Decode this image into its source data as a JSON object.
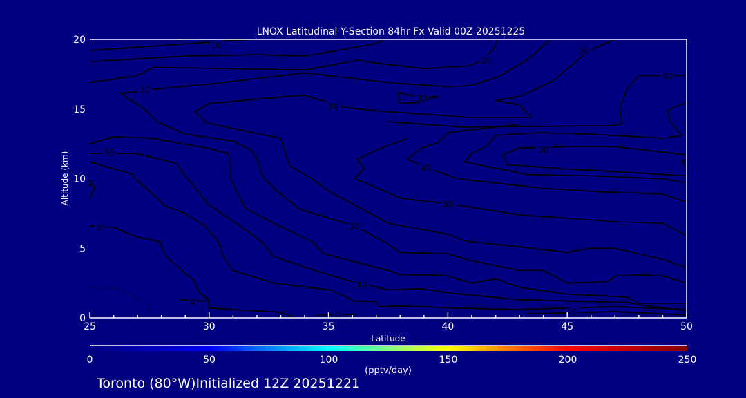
{
  "chart_data": {
    "type": "contour",
    "title": "LNOX Latitudinal Y-Section 84hr  Fx Valid 00Z 20251225",
    "xlabel": "Latitude",
    "ylabel": "Altitude (km)",
    "xlim": [
      25,
      50
    ],
    "ylim": [
      0,
      20
    ],
    "xticks": [
      "25",
      "30",
      "35",
      "40",
      "45",
      "50"
    ],
    "yticks": [
      "0",
      "5",
      "10",
      "15",
      "20"
    ],
    "xtick_values": [
      25,
      30,
      35,
      40,
      45,
      50
    ],
    "ytick_values": [
      0,
      5,
      10,
      15,
      20
    ],
    "grid": false,
    "colorbar": {
      "label": "(pptv/day)",
      "range": [
        0,
        250
      ],
      "ticks": [
        "0",
        "50",
        "100",
        "150",
        "200",
        "250"
      ],
      "tick_values": [
        0,
        50,
        100,
        150,
        200,
        250
      ],
      "colors": [
        "#000080",
        "#0000ff",
        "#00ffff",
        "#ffff00",
        "#ff0000",
        "#800000"
      ]
    },
    "fill_color": "#000080",
    "contours": [
      {
        "level": 10,
        "points": [
          [
            25,
            19.2
          ],
          [
            26.7,
            19.4
          ],
          [
            30.8,
            19.9
          ],
          [
            32,
            20
          ]
        ]
      },
      {
        "level": 20,
        "points": [
          [
            25,
            18.4
          ],
          [
            29,
            18.8
          ],
          [
            32,
            18.9
          ],
          [
            34,
            18.8
          ],
          [
            37,
            19.7
          ],
          [
            37.3,
            20
          ]
        ]
      },
      {
        "level": 20,
        "points": [
          [
            25,
            16.9
          ],
          [
            27,
            17.4
          ],
          [
            27.7,
            18
          ],
          [
            34,
            17.8
          ],
          [
            36.2,
            18.5
          ],
          [
            37.5,
            18.2
          ],
          [
            39,
            17.9
          ],
          [
            40.9,
            18.1
          ],
          [
            41.5,
            18.6
          ],
          [
            41.9,
            19.3
          ],
          [
            42.1,
            20
          ]
        ]
      },
      {
        "level": 20,
        "points": [
          [
            44.3,
            20
          ],
          [
            43.3,
            18.5
          ],
          [
            42.1,
            17.3
          ],
          [
            41,
            16.7
          ],
          [
            40,
            16.6
          ],
          [
            37.5,
            16.9
          ],
          [
            34,
            17.6
          ],
          [
            30.6,
            16.9
          ],
          [
            27.6,
            16.4
          ],
          [
            26.3,
            16.1
          ],
          [
            27.3,
            15
          ],
          [
            27.8,
            14.1
          ],
          [
            29,
            13.2
          ],
          [
            31,
            12.7
          ],
          [
            31.7,
            12.1
          ],
          [
            32,
            11.5
          ],
          [
            32.3,
            10
          ],
          [
            32.9,
            9
          ],
          [
            33.8,
            7.8
          ],
          [
            36.1,
            6.6
          ],
          [
            37.5,
            5.3
          ],
          [
            38,
            4.7
          ],
          [
            40,
            4.6
          ],
          [
            41,
            4.1
          ],
          [
            43,
            3.4
          ],
          [
            44,
            3.4
          ],
          [
            45,
            2.5
          ],
          [
            46.7,
            2.6
          ],
          [
            47,
            3
          ],
          [
            48,
            3.1
          ],
          [
            49,
            3
          ],
          [
            50,
            2.5
          ]
        ]
      },
      {
        "level": 30,
        "points": [
          [
            47,
            20
          ],
          [
            45.9,
            19.2
          ],
          [
            44.4,
            17
          ],
          [
            43,
            15.9
          ],
          [
            42,
            15.6
          ],
          [
            43,
            15.3
          ],
          [
            43.5,
            14.4
          ],
          [
            40.9,
            14.4
          ],
          [
            37.5,
            14.8
          ],
          [
            35.7,
            15.1
          ],
          [
            34,
            16
          ],
          [
            32,
            15.7
          ],
          [
            30,
            15.4
          ],
          [
            29.4,
            14.8
          ],
          [
            29.9,
            14
          ],
          [
            33,
            12.9
          ],
          [
            33.2,
            11.7
          ],
          [
            33.4,
            10.9
          ],
          [
            34.3,
            10
          ],
          [
            35.1,
            9
          ],
          [
            36,
            8.2
          ],
          [
            37.5,
            6.8
          ],
          [
            40,
            6
          ],
          [
            40.8,
            5.5
          ],
          [
            43,
            5.1
          ],
          [
            45,
            4.7
          ],
          [
            45.9,
            5
          ],
          [
            47,
            5
          ],
          [
            49,
            4.2
          ],
          [
            50,
            3.6
          ]
        ]
      },
      {
        "level": 30,
        "points": [
          [
            37.9,
            16.2
          ],
          [
            38,
            15.4
          ],
          [
            38.9,
            15.5
          ],
          [
            39.6,
            15.9
          ],
          [
            38.9,
            15.8
          ],
          [
            37.9,
            16.2
          ]
        ]
      },
      {
        "level": 30,
        "points": [
          [
            38.3,
            12.9
          ],
          [
            37.2,
            12.2
          ],
          [
            36.2,
            11.4
          ],
          [
            36.5,
            10.7
          ],
          [
            36.1,
            10
          ],
          [
            37.5,
            9
          ],
          [
            38,
            8.6
          ],
          [
            40.4,
            8.1
          ],
          [
            43,
            7.4
          ],
          [
            47,
            6.9
          ],
          [
            49,
            6.8
          ],
          [
            50,
            5.9
          ]
        ]
      },
      {
        "level": 40,
        "points": [
          [
            37.5,
            14.1
          ],
          [
            40.6,
            13.7
          ],
          [
            47,
            13.8
          ],
          [
            47.3,
            14
          ],
          [
            47.2,
            15
          ],
          [
            47.5,
            16.4
          ],
          [
            48,
            17.4
          ],
          [
            50,
            17.4
          ]
        ]
      },
      {
        "level": 40,
        "points": [
          [
            43,
            13.9
          ],
          [
            40,
            13.3
          ],
          [
            39.6,
            12.6
          ],
          [
            38.9,
            12.2
          ],
          [
            38.3,
            11.4
          ],
          [
            39.1,
            10.8
          ],
          [
            40.4,
            10
          ],
          [
            44,
            9.3
          ],
          [
            47,
            9
          ],
          [
            49,
            8.9
          ],
          [
            50,
            8.3
          ]
        ]
      },
      {
        "level": 40,
        "points": [
          [
            50,
            15.5
          ],
          [
            49.2,
            14.9
          ],
          [
            49.3,
            14.1
          ],
          [
            49.8,
            13.1
          ],
          [
            49,
            12.9
          ],
          [
            45.9,
            13.2
          ],
          [
            43.8,
            13.3
          ],
          [
            42,
            13.1
          ],
          [
            41.6,
            12.3
          ],
          [
            41,
            11.8
          ],
          [
            40.7,
            11.2
          ],
          [
            43.3,
            10.3
          ],
          [
            46,
            10.2
          ],
          [
            49,
            10
          ],
          [
            50,
            9.7
          ]
        ]
      },
      {
        "level": 50,
        "points": [
          [
            50,
            11.7
          ],
          [
            47,
            12.3
          ],
          [
            45,
            12.3
          ],
          [
            43,
            12.2
          ],
          [
            42.3,
            11.7
          ],
          [
            42.5,
            11
          ],
          [
            45,
            10.7
          ],
          [
            50,
            10.2
          ]
        ]
      },
      {
        "level": 50,
        "points": [
          [
            50,
            10.8
          ],
          [
            49.8,
            11.2
          ],
          [
            50,
            11.4
          ]
        ]
      },
      {
        "level": 0,
        "points": [
          [
            25,
            8.6
          ],
          [
            25.2,
            9.3
          ],
          [
            25.1,
            10
          ]
        ]
      },
      {
        "level": 10,
        "points": [
          [
            25,
            11.8
          ],
          [
            27,
            11.8
          ],
          [
            28.6,
            11.1
          ],
          [
            29.1,
            10
          ],
          [
            30,
            8.1
          ],
          [
            31.3,
            6.6
          ],
          [
            32.2,
            5.5
          ],
          [
            32.7,
            4.4
          ],
          [
            34.6,
            3.3
          ],
          [
            36,
            2.6
          ],
          [
            37.5,
            2
          ],
          [
            38.9,
            2.1
          ],
          [
            40,
            1.8
          ],
          [
            43,
            1.3
          ],
          [
            47.5,
            1.1
          ],
          [
            48,
            0.95
          ],
          [
            50,
            0.5
          ]
        ]
      },
      {
        "level": null,
        "points": [
          [
            25,
            11.2
          ],
          [
            26,
            10.7
          ],
          [
            26.8,
            10.3
          ],
          [
            26.9,
            10
          ],
          [
            28.2,
            8
          ],
          [
            29,
            7.5
          ],
          [
            29.8,
            6.6
          ],
          [
            30.4,
            5.5
          ],
          [
            30.6,
            4.4
          ],
          [
            31,
            3.4
          ],
          [
            32.7,
            2.5
          ],
          [
            34.1,
            2.2
          ],
          [
            35.1,
            2
          ],
          [
            36.1,
            1.2
          ],
          [
            37,
            1.2
          ],
          [
            37.1,
            0.8
          ],
          [
            38,
            0.85
          ],
          [
            39,
            0.8
          ],
          [
            40.4,
            0.7
          ],
          [
            43,
            0.6
          ],
          [
            45.6,
            0.75
          ],
          [
            47.1,
            0.8
          ],
          [
            50,
            0.6
          ]
        ]
      },
      {
        "level": null,
        "points": [
          [
            25,
            12.5
          ],
          [
            26,
            13
          ],
          [
            27.6,
            12.9
          ],
          [
            29.9,
            12.2
          ],
          [
            30.8,
            11.8
          ],
          [
            30.9,
            11
          ],
          [
            30.9,
            10
          ],
          [
            31.5,
            7.9
          ],
          [
            32.7,
            6.8
          ],
          [
            34.3,
            5.5
          ],
          [
            34.8,
            4.6
          ],
          [
            35.7,
            4.2
          ],
          [
            37.5,
            3.4
          ],
          [
            38,
            3.1
          ],
          [
            39.2,
            3.1
          ],
          [
            40,
            3
          ],
          [
            41,
            2.5
          ],
          [
            42,
            2.8
          ],
          [
            43,
            2.2
          ],
          [
            45,
            1.7
          ],
          [
            47.5,
            1.5
          ],
          [
            48,
            1.05
          ],
          [
            50,
            1.05
          ]
        ]
      },
      {
        "level": 0,
        "points": [
          [
            25,
            6.6
          ],
          [
            26,
            6.5
          ],
          [
            27,
            5.8
          ],
          [
            27.9,
            5.5
          ],
          [
            28.2,
            4.4
          ],
          [
            29.4,
            2.6
          ],
          [
            29.6,
            1.8
          ],
          [
            30,
            1.3
          ],
          [
            30,
            0.7
          ],
          [
            33,
            0.4
          ],
          [
            33.6,
            0
          ]
        ]
      },
      {
        "level": 0,
        "points": [
          [
            28.8,
            1.3
          ],
          [
            29.9,
            1.2
          ]
        ]
      },
      {
        "level": 0,
        "points": [
          [
            34.5,
            0.2
          ],
          [
            36.2,
            0.25
          ]
        ]
      },
      {
        "level": 0,
        "points": [
          [
            43.3,
            0.3
          ],
          [
            45,
            0.35
          ],
          [
            47,
            0.45
          ],
          [
            50,
            0.2
          ]
        ]
      },
      {
        "level": 0,
        "dotted": true,
        "points": [
          [
            25.1,
            2.2
          ],
          [
            26.1,
            2.1
          ],
          [
            26.7,
            1.7
          ],
          [
            27.4,
            1
          ],
          [
            27.5,
            0.2
          ]
        ]
      }
    ],
    "contour_labels": [
      {
        "text": "10",
        "at": [
          30.3,
          19.6
        ]
      },
      {
        "text": "20",
        "at": [
          41.6,
          18.5
        ]
      },
      {
        "text": "20",
        "at": [
          27.3,
          16.4
        ]
      },
      {
        "text": "30",
        "at": [
          35.2,
          15.2
        ]
      },
      {
        "text": "30",
        "at": [
          38.9,
          15.8
        ]
      },
      {
        "text": "30",
        "at": [
          45.7,
          19.2
        ]
      },
      {
        "text": "40",
        "at": [
          49.2,
          17.4
        ]
      },
      {
        "text": "50",
        "at": [
          44.0,
          12.1
        ]
      },
      {
        "text": "40",
        "at": [
          39.1,
          10.8
        ]
      },
      {
        "text": "10",
        "at": [
          25.8,
          11.9
        ]
      },
      {
        "text": "0",
        "at": [
          25.0,
          9.7
        ]
      },
      {
        "text": "30",
        "at": [
          40.0,
          8.2
        ]
      },
      {
        "text": "20",
        "at": [
          36.1,
          6.6
        ]
      },
      {
        "text": "0",
        "at": [
          25.4,
          6.5
        ]
      },
      {
        "text": "10",
        "at": [
          36.4,
          2.4
        ]
      },
      {
        "text": "0",
        "at": [
          29.3,
          1.2
        ]
      },
      {
        "text": "0",
        "at": [
          35.4,
          0.2
        ]
      },
      {
        "text": "0",
        "at": [
          45.3,
          0.45
        ]
      }
    ]
  },
  "footer": {
    "location": "Toronto (80°W)Initialized 12Z 20251221"
  }
}
